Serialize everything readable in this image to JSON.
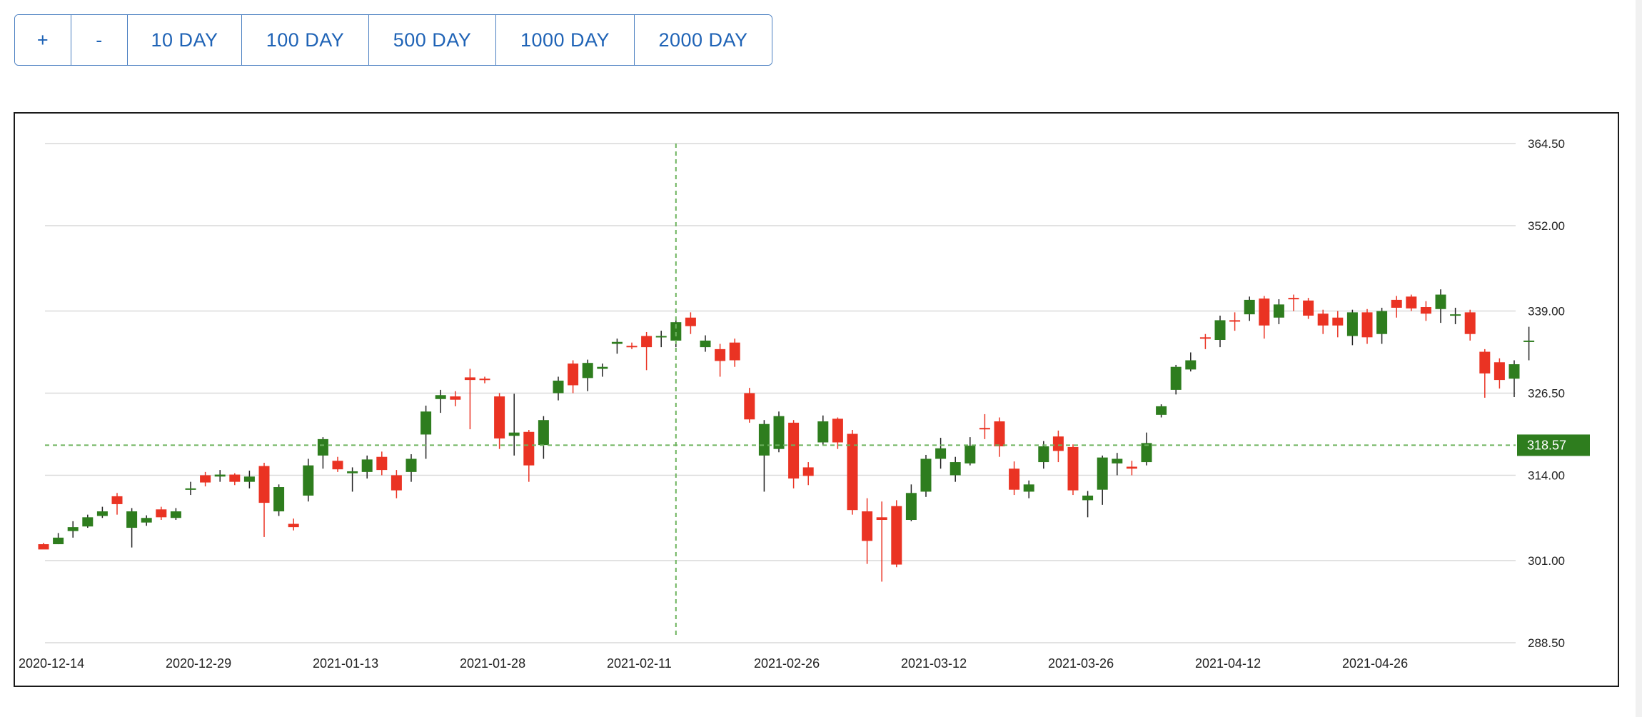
{
  "toolbar": {
    "buttons": [
      {
        "id": "zoom-in",
        "label": "+"
      },
      {
        "id": "zoom-out",
        "label": "-"
      },
      {
        "id": "range-10",
        "label": "10 DAY"
      },
      {
        "id": "range-100",
        "label": "100 DAY"
      },
      {
        "id": "range-500",
        "label": "500 DAY"
      },
      {
        "id": "range-1000",
        "label": "1000 DAY"
      },
      {
        "id": "range-2000",
        "label": "2000 DAY"
      }
    ]
  },
  "chart_data": {
    "type": "candlestick",
    "title": "",
    "xlabel": "",
    "ylabel": "",
    "ylim": [
      288.5,
      364.5
    ],
    "y_ticks": [
      "364.50",
      "352.00",
      "339.00",
      "326.50",
      "314.00",
      "301.00",
      "288.50"
    ],
    "x_tick_labels": [
      {
        "label": "2020-12-14",
        "index": 0
      },
      {
        "label": "2020-12-29",
        "index": 10
      },
      {
        "label": "2021-01-13",
        "index": 20
      },
      {
        "label": "2021-01-28",
        "index": 30
      },
      {
        "label": "2021-02-11",
        "index": 40
      },
      {
        "label": "2021-02-26",
        "index": 50
      },
      {
        "label": "2021-03-12",
        "index": 60
      },
      {
        "label": "2021-03-26",
        "index": 70
      },
      {
        "label": "2021-04-12",
        "index": 80
      },
      {
        "label": "2021-04-26",
        "index": 90
      }
    ],
    "grid": true,
    "colors": {
      "up": "#2e7d1e",
      "down": "#ea3323",
      "crosshair": "#6db35e",
      "grid": "#d9d9d9"
    },
    "crosshair": {
      "x_index": 43,
      "y_value": 318.57,
      "label": "318.57"
    },
    "candles": [
      [
        303.5,
        302.7,
        303.0,
        303.7
      ],
      [
        303.5,
        304.5,
        305.2,
        303.5
      ],
      [
        305.5,
        306.1,
        307.0,
        304.5
      ],
      [
        306.2,
        307.6,
        308.0,
        306.0
      ],
      [
        307.8,
        308.5,
        309.2,
        307.5
      ],
      [
        310.8,
        309.6,
        311.3,
        308.0
      ],
      [
        306.0,
        308.5,
        309.0,
        303.0
      ],
      [
        306.8,
        307.5,
        307.9,
        306.3
      ],
      [
        308.8,
        307.6,
        309.2,
        307.2
      ],
      [
        307.5,
        308.5,
        309.0,
        307.2
      ],
      [
        311.8,
        312.0,
        313.0,
        311.0
      ],
      [
        314.0,
        312.9,
        314.5,
        312.3
      ],
      [
        313.8,
        314.1,
        314.8,
        313.0
      ],
      [
        314.1,
        313.0,
        314.3,
        312.5
      ],
      [
        313.0,
        313.8,
        314.7,
        312.0
      ],
      [
        315.4,
        309.8,
        315.9,
        304.6
      ],
      [
        308.5,
        312.2,
        312.6,
        307.8
      ],
      [
        306.6,
        306.1,
        307.4,
        305.6
      ],
      [
        310.9,
        315.5,
        316.5,
        310.0
      ],
      [
        317.0,
        319.5,
        319.8,
        315.0
      ],
      [
        316.2,
        314.9,
        316.8,
        314.5
      ],
      [
        314.3,
        314.6,
        315.2,
        311.5
      ],
      [
        314.5,
        316.4,
        317.0,
        313.5
      ],
      [
        316.8,
        314.8,
        317.6,
        314.0
      ],
      [
        314.0,
        311.7,
        314.8,
        310.5
      ],
      [
        314.5,
        316.5,
        317.2,
        313.0
      ],
      [
        320.2,
        323.7,
        324.6,
        316.5
      ],
      [
        325.6,
        326.2,
        327.0,
        323.5
      ],
      [
        326.0,
        325.5,
        326.8,
        324.5
      ],
      [
        328.9,
        328.5,
        330.2,
        321.0
      ],
      [
        328.7,
        328.5,
        329.0,
        328.0
      ],
      [
        326.0,
        319.6,
        326.5,
        318.0
      ],
      [
        320.0,
        320.5,
        326.4,
        317.0
      ],
      [
        320.6,
        315.5,
        320.9,
        313.0
      ],
      [
        318.6,
        322.4,
        323.0,
        316.5
      ],
      [
        326.5,
        328.4,
        329.0,
        325.4
      ],
      [
        331.0,
        327.7,
        331.5,
        326.5
      ],
      [
        328.8,
        331.1,
        331.6,
        326.8
      ],
      [
        330.2,
        330.5,
        331.0,
        329.0
      ],
      [
        334.0,
        334.3,
        334.8,
        332.5
      ],
      [
        333.7,
        333.6,
        334.2,
        333.2
      ],
      [
        335.2,
        333.5,
        335.8,
        330.0
      ],
      [
        335.0,
        335.2,
        336.0,
        333.5
      ],
      [
        334.5,
        337.3,
        338.0,
        333.5
      ],
      [
        338.0,
        336.7,
        338.8,
        335.5
      ],
      [
        333.5,
        334.5,
        335.3,
        332.8
      ],
      [
        333.2,
        331.4,
        334.0,
        329.0
      ],
      [
        334.2,
        331.5,
        334.8,
        330.5
      ],
      [
        326.5,
        322.5,
        327.3,
        322.0
      ],
      [
        317.0,
        321.8,
        322.4,
        311.5
      ],
      [
        318.0,
        323.0,
        323.7,
        317.5
      ],
      [
        322.0,
        313.5,
        322.4,
        312.0
      ],
      [
        315.2,
        313.9,
        316.0,
        312.5
      ],
      [
        319.0,
        322.2,
        323.1,
        318.5
      ],
      [
        322.6,
        319.0,
        322.8,
        318.0
      ],
      [
        320.3,
        308.7,
        320.9,
        308.0
      ],
      [
        308.5,
        304.0,
        310.5,
        300.5
      ],
      [
        307.6,
        307.2,
        310.0,
        297.8
      ],
      [
        309.3,
        300.4,
        310.2,
        300.0
      ],
      [
        307.2,
        311.3,
        312.6,
        307.0
      ],
      [
        311.5,
        316.5,
        317.1,
        310.7
      ],
      [
        316.5,
        318.1,
        319.7,
        315.0
      ],
      [
        314.0,
        316.0,
        316.8,
        313.0
      ],
      [
        315.8,
        318.5,
        319.8,
        315.5
      ],
      [
        321.2,
        321.0,
        323.3,
        319.5
      ],
      [
        322.2,
        318.4,
        322.8,
        316.8
      ],
      [
        315.0,
        311.8,
        316.1,
        311.0
      ],
      [
        311.5,
        312.6,
        313.2,
        310.5
      ],
      [
        316.0,
        318.4,
        319.2,
        315.0
      ],
      [
        319.9,
        317.7,
        320.8,
        316.0
      ],
      [
        318.3,
        311.7,
        318.7,
        311.0
      ],
      [
        310.2,
        310.9,
        311.6,
        307.6
      ],
      [
        311.8,
        316.7,
        317.0,
        309.5
      ],
      [
        315.8,
        316.5,
        317.4,
        314.0
      ],
      [
        315.3,
        315.0,
        316.2,
        314.0
      ],
      [
        316.0,
        318.9,
        320.5,
        315.5
      ],
      [
        323.2,
        324.5,
        324.8,
        322.8
      ],
      [
        327.0,
        330.5,
        330.8,
        326.3
      ],
      [
        330.1,
        331.5,
        332.7,
        329.8
      ],
      [
        335.0,
        334.8,
        335.5,
        333.2
      ],
      [
        334.6,
        337.6,
        338.3,
        333.5
      ],
      [
        337.6,
        337.5,
        338.8,
        336.0
      ],
      [
        338.5,
        340.7,
        341.2,
        337.5
      ],
      [
        340.9,
        336.8,
        341.3,
        334.8
      ],
      [
        338.0,
        340.0,
        340.8,
        337.0
      ],
      [
        341.0,
        340.9,
        341.5,
        339.0
      ],
      [
        340.6,
        338.3,
        341.0,
        337.8
      ],
      [
        338.6,
        336.8,
        339.2,
        335.5
      ],
      [
        338.0,
        336.8,
        339.0,
        335.0
      ],
      [
        335.2,
        338.8,
        339.2,
        333.8
      ],
      [
        338.8,
        335.0,
        339.3,
        334.0
      ],
      [
        335.5,
        339.0,
        339.5,
        334.0
      ],
      [
        340.7,
        339.5,
        341.3,
        338.0
      ],
      [
        341.2,
        339.4,
        341.5,
        339.0
      ],
      [
        339.6,
        338.6,
        340.5,
        337.5
      ],
      [
        339.3,
        341.5,
        342.3,
        337.2
      ],
      [
        338.5,
        338.5,
        339.5,
        337.0
      ],
      [
        338.8,
        335.5,
        339.2,
        334.5
      ],
      [
        332.8,
        329.5,
        333.2,
        325.8
      ],
      [
        331.2,
        328.5,
        331.8,
        327.2
      ],
      [
        328.7,
        330.9,
        331.5,
        325.9
      ],
      [
        334.5,
        334.5,
        336.6,
        331.5
      ]
    ]
  }
}
